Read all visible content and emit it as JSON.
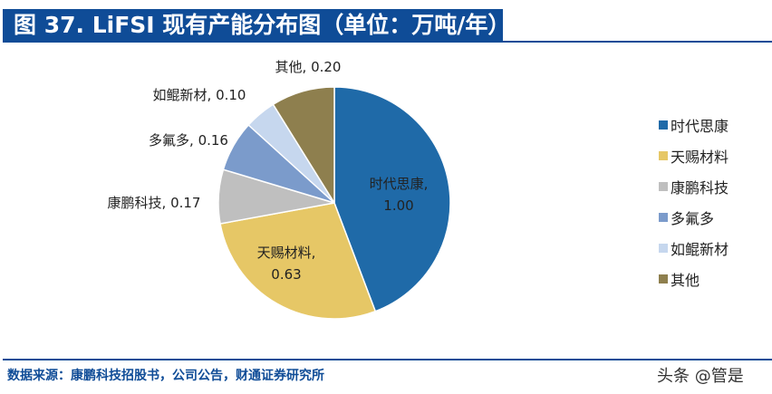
{
  "title": "图 37. LiFSI 现有产能分布图（单位：万吨/年）",
  "source": "数据来源：康鹏科技招股书，公司公告，财通证券研究所",
  "watermark": "头条 @管是",
  "chart_data": {
    "type": "pie",
    "title": "图 37. LiFSI 现有产能分布图（单位：万吨/年）",
    "unit": "万吨/年",
    "legend_position": "right",
    "slices": [
      {
        "name": "时代思康",
        "value": 1.0,
        "color": "#1f6aa8",
        "label": "时代思康, 1.00"
      },
      {
        "name": "天赐材料",
        "value": 0.63,
        "color": "#e6c766",
        "label": "天赐材料, 0.63"
      },
      {
        "name": "康鹏科技",
        "value": 0.17,
        "color": "#bfbfbf",
        "label": "康鹏科技, 0.17"
      },
      {
        "name": "多氟多",
        "value": 0.16,
        "color": "#7b9bcb",
        "label": "多氟多, 0.16"
      },
      {
        "name": "如鲲新材",
        "value": 0.1,
        "color": "#c6d7ee",
        "label": "如鲲新材, 0.10"
      },
      {
        "name": "其他",
        "value": 0.2,
        "color": "#8e7f4e",
        "label": "其他, 0.20"
      }
    ]
  }
}
